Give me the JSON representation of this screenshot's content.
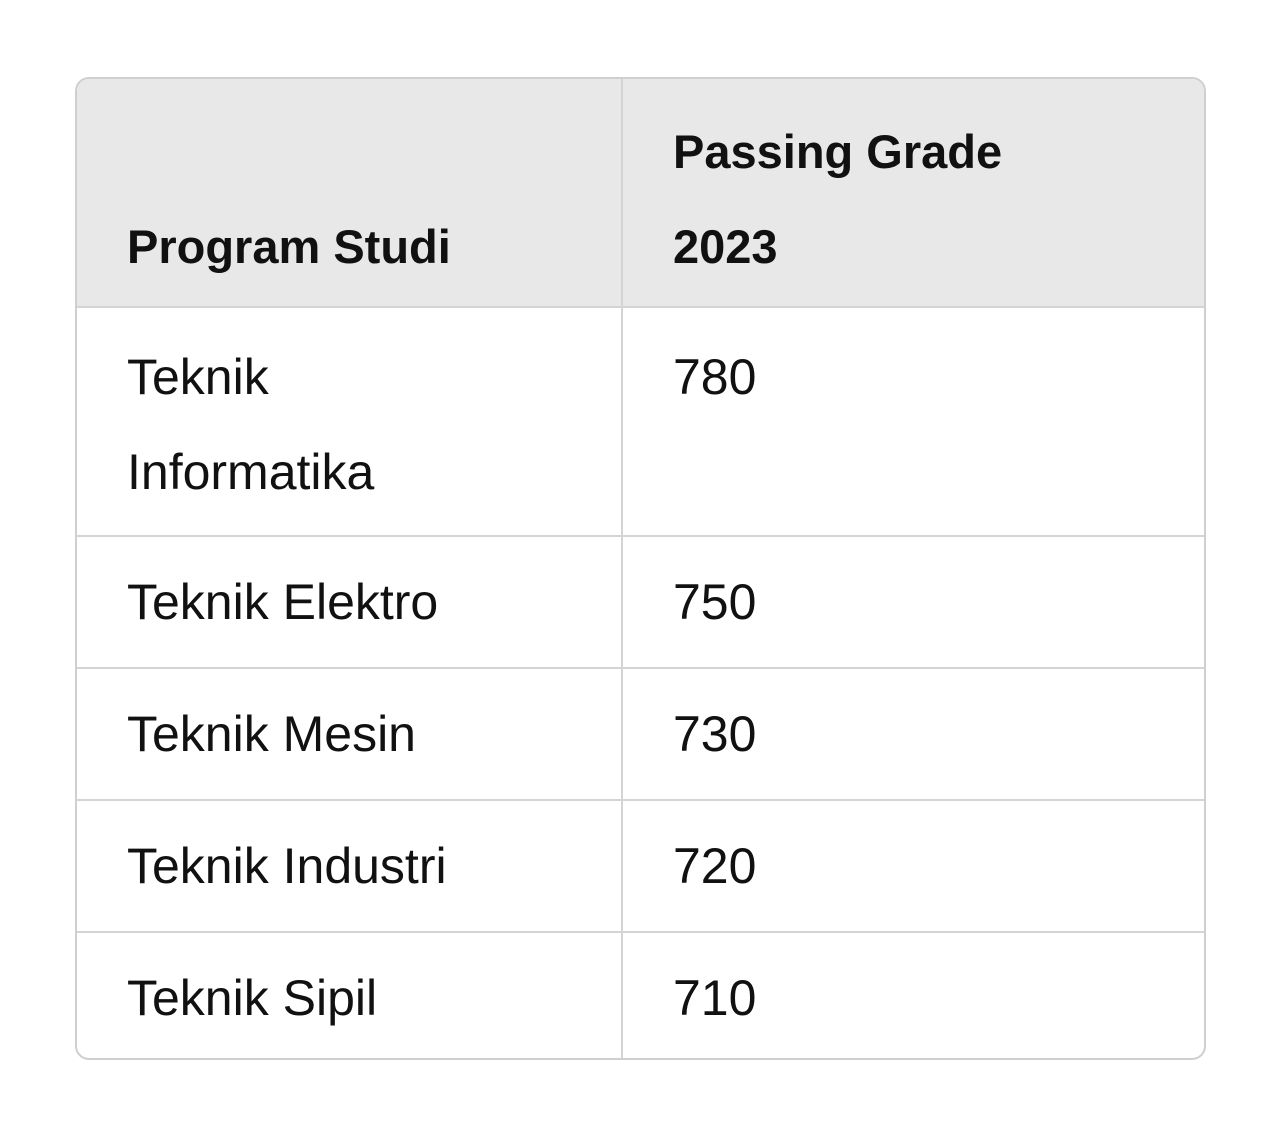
{
  "table": {
    "headers": {
      "program": "Program Studi",
      "grade": "Passing Grade 2023"
    },
    "rows": [
      {
        "program": "Teknik Informatika",
        "grade": "780"
      },
      {
        "program": "Teknik Elektro",
        "grade": "750"
      },
      {
        "program": "Teknik Mesin",
        "grade": "730"
      },
      {
        "program": "Teknik Industri",
        "grade": "720"
      },
      {
        "program": "Teknik Sipil",
        "grade": "710"
      }
    ]
  }
}
